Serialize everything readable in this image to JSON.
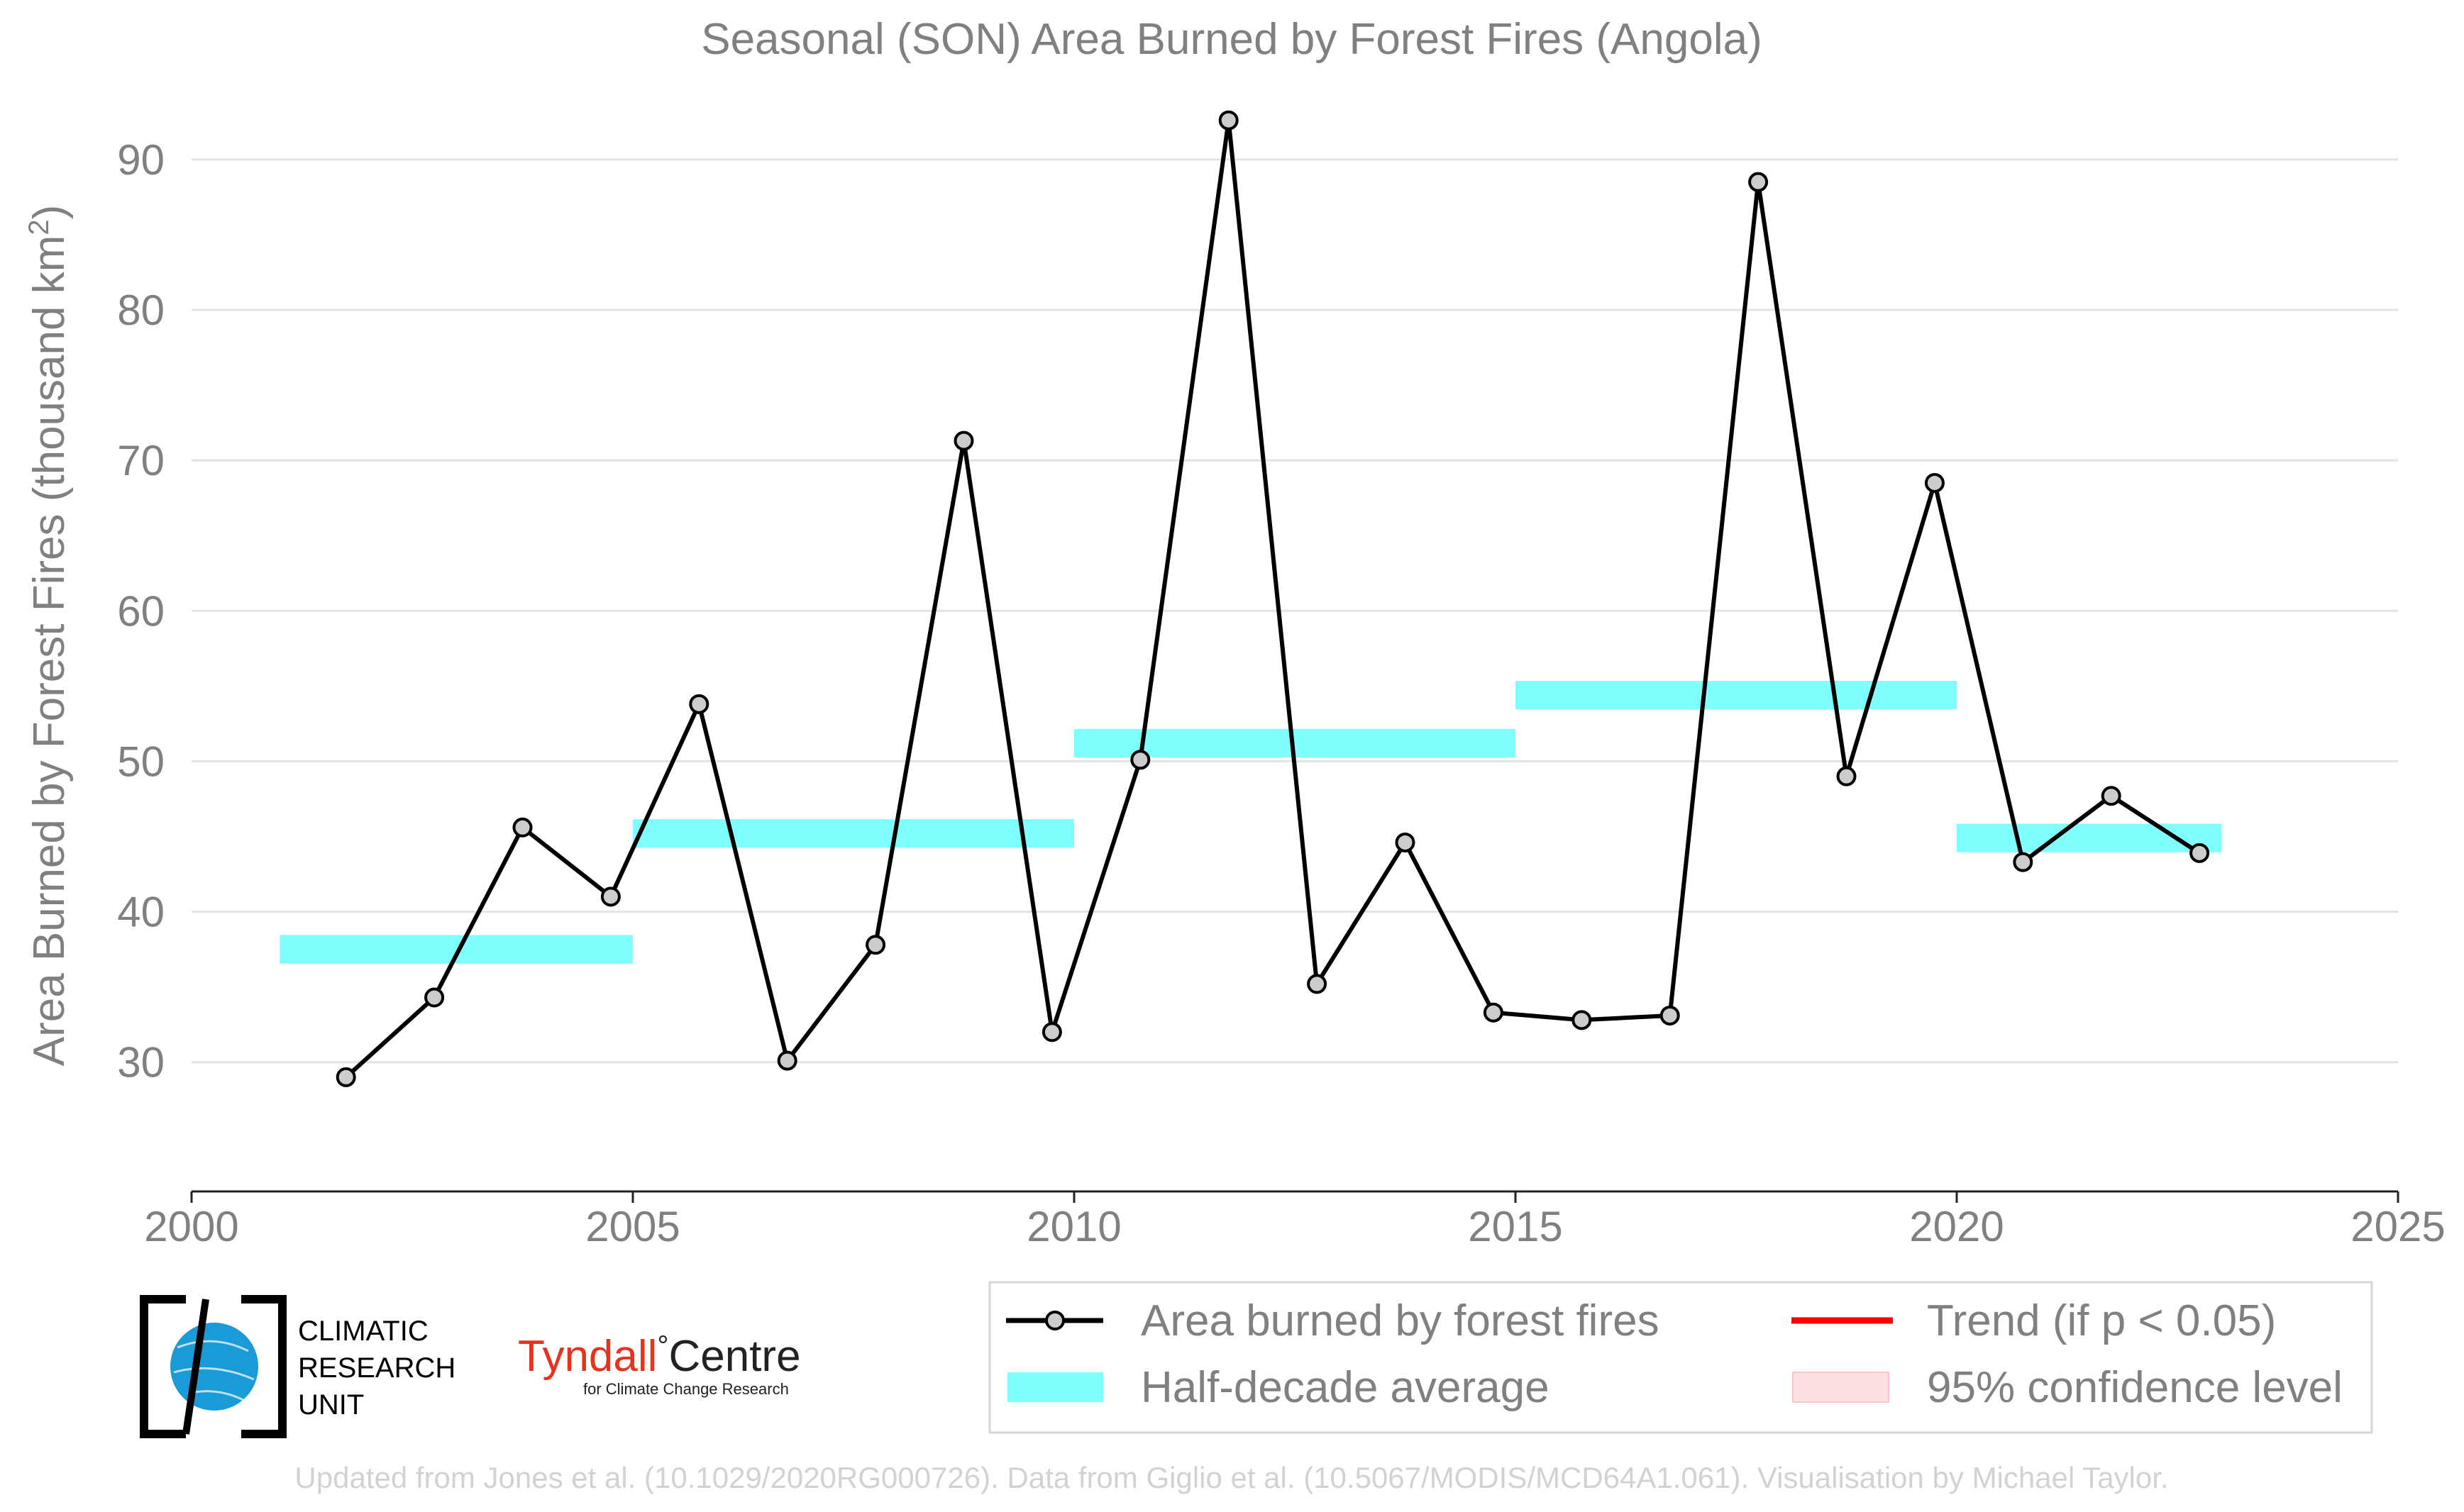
{
  "colors": {
    "series": "#000000",
    "marker_fill": "#cccccc",
    "half_decade": "#80ffff",
    "trend": "#ff0000",
    "confidence": "#fde0e0",
    "text": "#808080",
    "credit": "#d2d2d2",
    "tyndall_red": "#e8321e",
    "cru_blue": "#1a9ad6"
  },
  "chart_data": {
    "type": "line",
    "title": "Seasonal (SON) Area Burned by Forest Fires (Angola)",
    "ylabel": "Area Burned by Forest Fires (thousand km",
    "ylabel_superscript": "2",
    "ylabel_suffix": ")",
    "xlim": [
      2000,
      2025
    ],
    "ylim": [
      24,
      94
    ],
    "xticks": [
      2000,
      2005,
      2010,
      2015,
      2020,
      2025
    ],
    "yticks": [
      30,
      40,
      50,
      60,
      70,
      80,
      90
    ],
    "grid": "horizontal",
    "legend_position": "bottom-right",
    "series": [
      {
        "name": "Area burned by forest fires",
        "x": [
          2001.75,
          2002.75,
          2003.75,
          2004.75,
          2005.75,
          2006.75,
          2007.75,
          2008.75,
          2009.75,
          2010.75,
          2011.75,
          2012.75,
          2013.75,
          2014.75,
          2015.75,
          2016.75,
          2017.75,
          2018.75,
          2019.75,
          2020.75,
          2021.75,
          2022.75
        ],
        "values": [
          29.0,
          34.3,
          45.6,
          41.0,
          53.8,
          30.1,
          37.8,
          71.3,
          32.0,
          50.1,
          92.6,
          35.2,
          44.6,
          33.3,
          32.8,
          33.1,
          88.5,
          49.0,
          68.5,
          43.3,
          47.7,
          43.9
        ]
      }
    ],
    "half_decade_averages": [
      {
        "start": 2001,
        "end": 2005,
        "value": 37.5
      },
      {
        "start": 2005,
        "end": 2010,
        "value": 45.2
      },
      {
        "start": 2010,
        "end": 2015,
        "value": 51.2
      },
      {
        "start": 2015,
        "end": 2020,
        "value": 54.4
      },
      {
        "start": 2020,
        "end": 2023,
        "value": 44.9
      }
    ],
    "legend": {
      "series": "Area burned by forest fires",
      "half_decade": "Half-decade average",
      "trend": "Trend (if p < 0.05)",
      "confidence": "95% confidence level"
    }
  },
  "credits": {
    "text": "Updated from Jones et al. (10.1029/2020RG000726). Data from Giglio et al. (10.5067/MODIS/MCD64A1.061). Visualisation by Michael Taylor."
  },
  "logos": {
    "cru_line1": "CLIMATIC",
    "cru_line2": "RESEARCH",
    "cru_line3": "UNIT",
    "tyndall_name": "Tyndall",
    "tyndall_degree": "°",
    "tyndall_centre": "Centre",
    "tyndall_sub": "for Climate Change Research"
  }
}
